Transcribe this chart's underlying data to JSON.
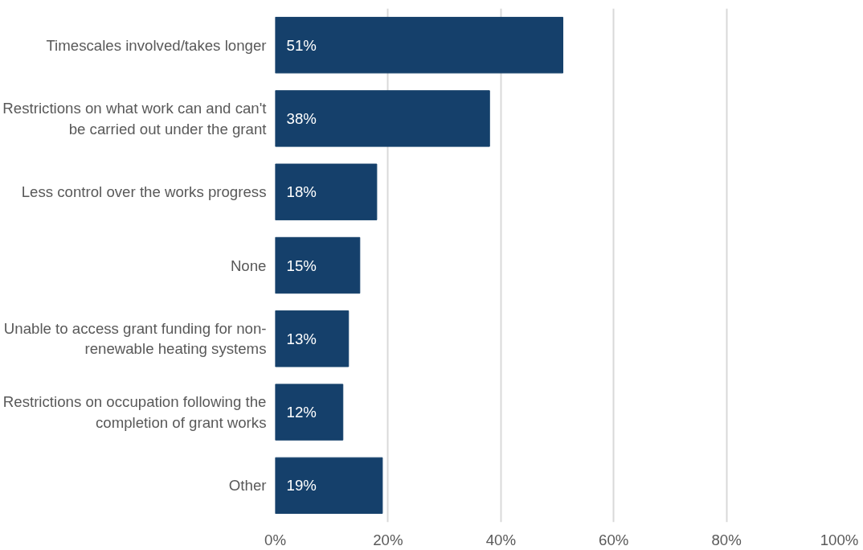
{
  "chart_data": {
    "type": "bar",
    "orientation": "horizontal",
    "categories": [
      "Timescales involved/takes longer",
      "Restrictions on what work can and can't be carried out under the grant",
      "Less control over the works progress",
      "None",
      "Unable to access grant funding for non-renewable heating systems",
      "Restrictions on occupation following the completion of grant works",
      "Other"
    ],
    "values": [
      51,
      38,
      18,
      15,
      13,
      12,
      19
    ],
    "value_labels": [
      "51%",
      "38%",
      "18%",
      "15%",
      "13%",
      "12%",
      "19%"
    ],
    "color": "#15406b",
    "xlim": [
      0,
      100
    ],
    "xticks": [
      {
        "value": 0,
        "label": "0%"
      },
      {
        "value": 20,
        "label": "20%"
      },
      {
        "value": 40,
        "label": "40%"
      },
      {
        "value": 60,
        "label": "60%"
      },
      {
        "value": 80,
        "label": "80%"
      },
      {
        "value": 100,
        "label": "100%"
      }
    ],
    "grid": "x"
  }
}
